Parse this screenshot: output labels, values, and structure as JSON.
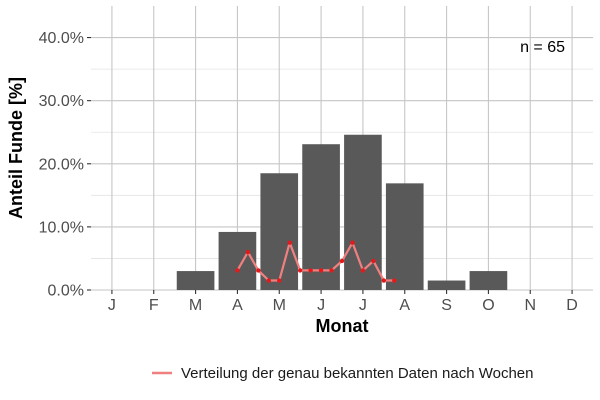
{
  "chart_data": {
    "type": "bar",
    "xlabel": "Monat",
    "ylabel": "Anteil Funde [%]",
    "categories": [
      "J",
      "F",
      "M",
      "A",
      "M",
      "J",
      "J",
      "A",
      "S",
      "O",
      "N",
      "D"
    ],
    "values": [
      0,
      0,
      3.0,
      9.2,
      18.5,
      23.1,
      24.6,
      16.9,
      1.5,
      3.0,
      0,
      0
    ],
    "ylim": [
      0,
      45
    ],
    "yticks": [
      0,
      10,
      20,
      30,
      40
    ],
    "ytick_labels": [
      "0.0%",
      "10.0%",
      "20.0%",
      "30.0%",
      "40.0%"
    ],
    "grid": true,
    "annotation": "n = 65",
    "bar_color": "#595959",
    "line_series": {
      "name": "Verteilung der genau bekannten Daten nach Wochen",
      "color": "#f08080",
      "point_color": "#e31a1c",
      "x": [
        4.0,
        4.25,
        4.5,
        4.75,
        5.0,
        5.25,
        5.5,
        5.75,
        6.0,
        6.25,
        6.5,
        6.75,
        7.0,
        7.25,
        7.5,
        7.75
      ],
      "y": [
        3.1,
        6.0,
        3.1,
        1.5,
        1.5,
        7.5,
        3.1,
        3.1,
        3.1,
        3.1,
        4.6,
        7.5,
        3.1,
        4.6,
        1.5,
        1.5
      ]
    },
    "legend_position": "bottom"
  }
}
